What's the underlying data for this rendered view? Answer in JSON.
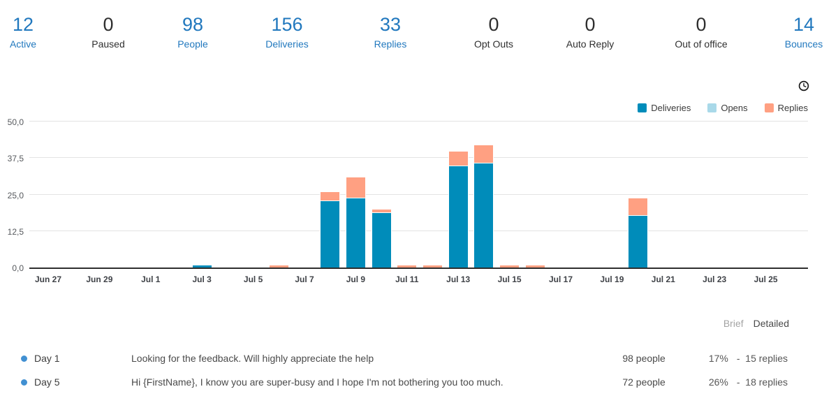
{
  "colors": {
    "accent_blue": "#2178be",
    "dark_text": "#2f2f2f",
    "bullet_blue": "#4190d2",
    "deliveries": "#008cba",
    "opens": "#a9d9e9",
    "replies": "#ffa082"
  },
  "stats": [
    {
      "value": "12",
      "label": "Active",
      "highlight": true
    },
    {
      "value": "0",
      "label": "Paused",
      "highlight": false
    },
    {
      "value": "98",
      "label": "People",
      "highlight": true
    },
    {
      "value": "156",
      "label": "Deliveries",
      "highlight": true
    },
    {
      "value": "33",
      "label": "Replies",
      "highlight": true
    },
    {
      "value": "0",
      "label": "Opt Outs",
      "highlight": false
    },
    {
      "value": "0",
      "label": "Auto Reply",
      "highlight": false
    },
    {
      "value": "0",
      "label": "Out of office",
      "highlight": false
    },
    {
      "value": "14",
      "label": "Bounces",
      "highlight": true
    }
  ],
  "chart_data": {
    "type": "bar",
    "stacked": true,
    "categories": [
      "Jun 27",
      "Jun 28",
      "Jun 29",
      "Jun 30",
      "Jul 1",
      "Jul 2",
      "Jul 3",
      "Jul 4",
      "Jul 5",
      "Jul 6",
      "Jul 7",
      "Jul 8",
      "Jul 9",
      "Jul 10",
      "Jul 11",
      "Jul 12",
      "Jul 13",
      "Jul 14",
      "Jul 15",
      "Jul 16",
      "Jul 17",
      "Jul 18",
      "Jul 19",
      "Jul 20",
      "Jul 21",
      "Jul 22",
      "Jul 23",
      "Jul 24",
      "Jul 25"
    ],
    "xtick_labels": [
      "Jun 27",
      "Jun 29",
      "Jul 1",
      "Jul 3",
      "Jul 5",
      "Jul 7",
      "Jul 9",
      "Jul 11",
      "Jul 13",
      "Jul 15",
      "Jul 17",
      "Jul 19",
      "Jul 21",
      "Jul 23",
      "Jul 25"
    ],
    "xtick_every": 2,
    "series": [
      {
        "name": "Deliveries",
        "color": "#008cba",
        "values": [
          0,
          0,
          0,
          0,
          0,
          0,
          1,
          0,
          0,
          0,
          0,
          23,
          24,
          19,
          0,
          0,
          35,
          36,
          0,
          0,
          0,
          0,
          0,
          18,
          0,
          0,
          0,
          0,
          0
        ]
      },
      {
        "name": "Opens",
        "color": "#a9d9e9",
        "values": [
          0,
          0,
          0,
          0,
          0,
          0,
          0,
          0,
          0,
          0,
          0,
          0,
          0,
          0,
          0,
          0,
          0,
          0,
          0,
          0,
          0,
          0,
          0,
          0,
          0,
          0,
          0,
          0,
          0
        ]
      },
      {
        "name": "Replies",
        "color": "#ffa082",
        "values": [
          0,
          0,
          0,
          0,
          0,
          0,
          0,
          0,
          0,
          1,
          0,
          3,
          7,
          1,
          1,
          1,
          5,
          6,
          1,
          1,
          0,
          0,
          0,
          6,
          0,
          0,
          0,
          0,
          0
        ]
      }
    ],
    "ylim": [
      0,
      50
    ],
    "yticks": [
      0,
      12.5,
      25,
      37.5,
      50
    ],
    "ytick_labels": [
      "0,0",
      "12,5",
      "25,0",
      "37,5",
      "50,0"
    ],
    "grid": "horizontal",
    "legend_position": "top-right"
  },
  "view_toggle": {
    "brief": "Brief",
    "detailed": "Detailed"
  },
  "emails": [
    {
      "day": "Day 1",
      "message": "Looking for the feedback. Will highly appreciate the help",
      "people": "98 people",
      "percent": "17%",
      "replies": "-  15 replies"
    },
    {
      "day": "Day 5",
      "message": "Hi {FirstName},  I know you are super-busy and I hope I'm not bothering you too much.",
      "people": "72 people",
      "percent": "26%",
      "replies": "-  18 replies"
    }
  ]
}
